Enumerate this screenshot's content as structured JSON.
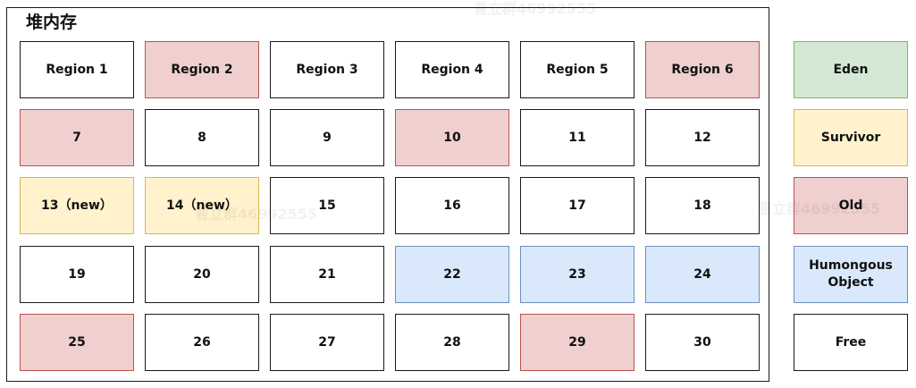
{
  "heap": {
    "title": "堆内存",
    "regions": [
      {
        "label": "Region 1",
        "type": "free"
      },
      {
        "label": "Region 2",
        "type": "old"
      },
      {
        "label": "Region 3",
        "type": "free"
      },
      {
        "label": "Region 4",
        "type": "free"
      },
      {
        "label": "Region 5",
        "type": "free"
      },
      {
        "label": "Region 6",
        "type": "old"
      },
      {
        "label": "7",
        "type": "old"
      },
      {
        "label": "8",
        "type": "free"
      },
      {
        "label": "9",
        "type": "free"
      },
      {
        "label": "10",
        "type": "old"
      },
      {
        "label": "11",
        "type": "free"
      },
      {
        "label": "12",
        "type": "free"
      },
      {
        "label": "13（new）",
        "type": "survivor"
      },
      {
        "label": "14（new）",
        "type": "survivor"
      },
      {
        "label": "15",
        "type": "free"
      },
      {
        "label": "16",
        "type": "free"
      },
      {
        "label": "17",
        "type": "free"
      },
      {
        "label": "18",
        "type": "free"
      },
      {
        "label": "19",
        "type": "free"
      },
      {
        "label": "20",
        "type": "free"
      },
      {
        "label": "21",
        "type": "free"
      },
      {
        "label": "22",
        "type": "humongous"
      },
      {
        "label": "23",
        "type": "humongous"
      },
      {
        "label": "24",
        "type": "humongous"
      },
      {
        "label": "25",
        "type": "old"
      },
      {
        "label": "26",
        "type": "free"
      },
      {
        "label": "27",
        "type": "free"
      },
      {
        "label": "28",
        "type": "free"
      },
      {
        "label": "29",
        "type": "old"
      },
      {
        "label": "30",
        "type": "free"
      }
    ]
  },
  "legend": [
    {
      "label": "Eden",
      "type": "eden"
    },
    {
      "label": "Survivor",
      "type": "survivor"
    },
    {
      "label": "Old",
      "type": "old"
    },
    {
      "label": "Humongous Object",
      "type": "humongous"
    },
    {
      "label": "Free",
      "type": "free"
    }
  ],
  "colors": {
    "eden": {
      "fill": "#d5e8d4",
      "stroke": "#82b366"
    },
    "survivor": {
      "fill": "#fff2cc",
      "stroke": "#d6b656"
    },
    "old": {
      "fill": "#f0cfcf",
      "stroke": "#b85450"
    },
    "humongous": {
      "fill": "#dae8fc",
      "stroke": "#6c8ebf"
    },
    "free": {
      "fill": "#ffffff",
      "stroke": "#1a1a1a"
    }
  },
  "watermark": "曹立群46992555"
}
